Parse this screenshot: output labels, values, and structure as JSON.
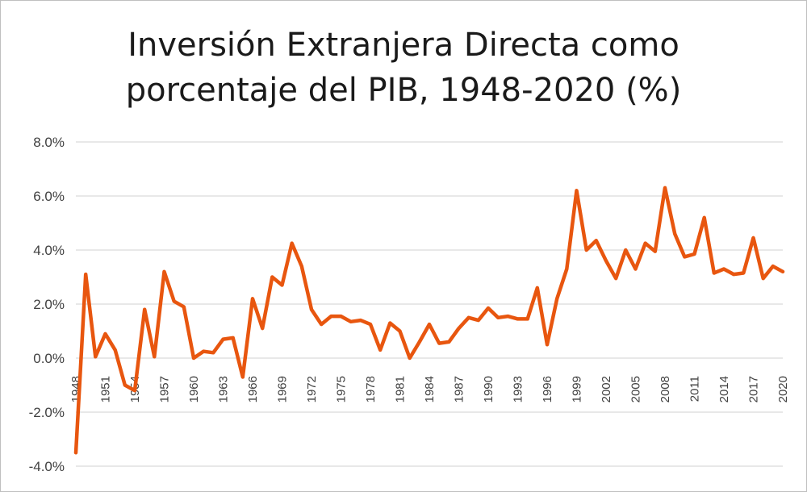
{
  "chart_data": {
    "type": "line",
    "title": [
      "Inversión Extranjera Directa como",
      "porcentaje del PIB, 1948-2020 (%)"
    ],
    "xlabel": "",
    "ylabel": "",
    "ylim": [
      -4,
      8
    ],
    "y_ticks": [
      -4,
      -2,
      0,
      2,
      4,
      6,
      8
    ],
    "y_tick_labels": [
      "-4.0%",
      "-2.0%",
      "0.0%",
      "2.0%",
      "4.0%",
      "6.0%",
      "8.0%"
    ],
    "x_tick_labels": [
      "1948",
      "1951",
      "1954",
      "1957",
      "1960",
      "1963",
      "1966",
      "1969",
      "1972",
      "1975",
      "1978",
      "1981",
      "1984",
      "1987",
      "1990",
      "1993",
      "1996",
      "1999",
      "2002",
      "2005",
      "2008",
      "2011",
      "2014",
      "2017",
      "2020"
    ],
    "grid": true,
    "legend": "none",
    "line_color": "#e8560f",
    "series": [
      {
        "x": [
          1948,
          1949,
          1950,
          1951,
          1952,
          1953,
          1954,
          1955,
          1956,
          1957,
          1958,
          1959,
          1960,
          1961,
          1962,
          1963,
          1964,
          1965,
          1966,
          1967,
          1968,
          1969,
          1970,
          1971,
          1972,
          1973,
          1974,
          1975,
          1976,
          1977,
          1978,
          1979,
          1980,
          1981,
          1982,
          1983,
          1984,
          1985,
          1986,
          1987,
          1988,
          1989,
          1990,
          1991,
          1992,
          1993,
          1994,
          1995,
          1996,
          1997,
          1998,
          1999,
          2000,
          2001,
          2002,
          2003,
          2004,
          2005,
          2006,
          2007,
          2008,
          2009,
          2010,
          2011,
          2012,
          2013,
          2014,
          2015,
          2016,
          2017,
          2018,
          2019,
          2020
        ],
        "values": [
          -3.5,
          3.1,
          0.05,
          0.9,
          0.3,
          -1.0,
          -1.2,
          1.8,
          0.05,
          3.2,
          2.1,
          1.9,
          0.0,
          0.25,
          0.2,
          0.7,
          0.75,
          -0.7,
          2.2,
          1.1,
          3.0,
          2.7,
          4.25,
          3.4,
          1.8,
          1.25,
          1.55,
          1.55,
          1.35,
          1.4,
          1.25,
          0.3,
          1.3,
          1.0,
          0.0,
          0.6,
          1.25,
          0.55,
          0.6,
          1.1,
          1.5,
          1.4,
          1.85,
          1.5,
          1.55,
          1.45,
          1.45,
          2.6,
          0.5,
          2.2,
          3.3,
          6.2,
          4.0,
          4.35,
          3.6,
          2.95,
          4.0,
          3.3,
          4.25,
          3.95,
          6.3,
          4.6,
          3.75,
          3.85,
          5.2,
          3.15,
          3.3,
          3.1,
          3.15,
          4.45,
          2.95,
          3.4,
          3.2
        ]
      }
    ]
  }
}
